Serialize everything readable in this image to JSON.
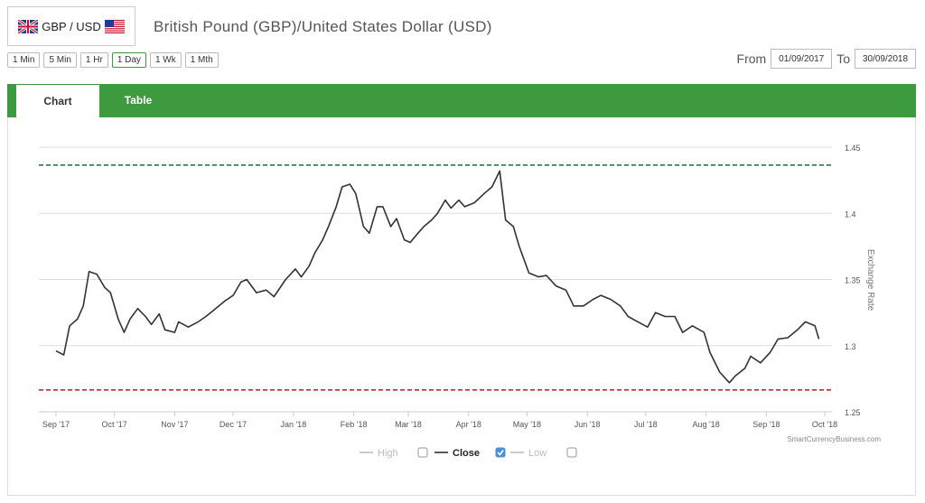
{
  "pair_label": "GBP / USD",
  "title": "British Pound (GBP)/United States Dollar (USD)",
  "intervals": [
    "1 Min",
    "5 Min",
    "1 Hr",
    "1 Day",
    "1 Wk",
    "1 Mth"
  ],
  "active_interval": "1 Day",
  "range": {
    "from_label": "From",
    "from_value": "01/09/2017",
    "to_label": "To",
    "to_value": "30/09/2018"
  },
  "tabs": {
    "chart": "Chart",
    "table": "Table"
  },
  "colors": {
    "accent": "#3e9a3e",
    "line": "#333333",
    "high_line": "#2e7d2e",
    "low_line": "#c62828"
  },
  "watermark": "SmartCurrencyBusiness.com",
  "chart_data": {
    "type": "line",
    "ylabel": "Exchange Rate",
    "ylim": [
      1.25,
      1.45
    ],
    "yticks": [
      "1.25",
      "1.3",
      "1.35",
      "1.4",
      "1.45"
    ],
    "xtick_labels": [
      "Sep '17",
      "Oct '17",
      "Nov '17",
      "Dec '17",
      "Jan '18",
      "Feb '18",
      "Mar '18",
      "Apr '18",
      "May '18",
      "Jun '18",
      "Jul '18",
      "Aug '18",
      "Sep '18",
      "Oct '18"
    ],
    "reference_lines": [
      {
        "value": 1.4365,
        "style": "dashed",
        "color": "#2e7d2e"
      },
      {
        "value": 1.2665,
        "style": "dashed",
        "color": "#c62828"
      }
    ],
    "legend": [
      {
        "name": "High",
        "checked": false
      },
      {
        "name": "Close",
        "checked": true
      },
      {
        "name": "Low",
        "checked": false
      }
    ],
    "series": [
      {
        "name": "Close",
        "x": [
          "2017-09-01",
          "2017-09-05",
          "2017-09-08",
          "2017-09-12",
          "2017-09-15",
          "2017-09-18",
          "2017-09-22",
          "2017-09-26",
          "2017-09-29",
          "2017-10-03",
          "2017-10-06",
          "2017-10-09",
          "2017-10-13",
          "2017-10-17",
          "2017-10-20",
          "2017-10-24",
          "2017-10-27",
          "2017-11-01",
          "2017-11-03",
          "2017-11-08",
          "2017-11-13",
          "2017-11-17",
          "2017-11-22",
          "2017-11-27",
          "2017-12-01",
          "2017-12-05",
          "2017-12-08",
          "2017-12-13",
          "2017-12-18",
          "2017-12-22",
          "2017-12-28",
          "2018-01-02",
          "2018-01-05",
          "2018-01-09",
          "2018-01-12",
          "2018-01-16",
          "2018-01-19",
          "2018-01-23",
          "2018-01-26",
          "2018-01-30",
          "2018-02-02",
          "2018-02-06",
          "2018-02-09",
          "2018-02-13",
          "2018-02-16",
          "2018-02-20",
          "2018-02-23",
          "2018-02-27",
          "2018-03-02",
          "2018-03-06",
          "2018-03-09",
          "2018-03-13",
          "2018-03-16",
          "2018-03-20",
          "2018-03-23",
          "2018-03-27",
          "2018-03-30",
          "2018-04-04",
          "2018-04-09",
          "2018-04-13",
          "2018-04-17",
          "2018-04-20",
          "2018-04-24",
          "2018-04-27",
          "2018-05-02",
          "2018-05-07",
          "2018-05-11",
          "2018-05-16",
          "2018-05-21",
          "2018-05-25",
          "2018-05-30",
          "2018-06-04",
          "2018-06-08",
          "2018-06-13",
          "2018-06-18",
          "2018-06-22",
          "2018-06-27",
          "2018-07-02",
          "2018-07-06",
          "2018-07-11",
          "2018-07-16",
          "2018-07-20",
          "2018-07-25",
          "2018-07-31",
          "2018-08-03",
          "2018-08-08",
          "2018-08-13",
          "2018-08-16",
          "2018-08-21",
          "2018-08-24",
          "2018-08-29",
          "2018-09-03",
          "2018-09-07",
          "2018-09-12",
          "2018-09-17",
          "2018-09-21",
          "2018-09-26",
          "2018-09-28"
        ],
        "values": [
          1.296,
          1.293,
          1.315,
          1.32,
          1.33,
          1.356,
          1.354,
          1.344,
          1.34,
          1.32,
          1.31,
          1.32,
          1.328,
          1.322,
          1.316,
          1.324,
          1.312,
          1.31,
          1.318,
          1.314,
          1.318,
          1.322,
          1.328,
          1.334,
          1.338,
          1.348,
          1.35,
          1.34,
          1.342,
          1.337,
          1.35,
          1.358,
          1.352,
          1.36,
          1.37,
          1.38,
          1.39,
          1.405,
          1.42,
          1.422,
          1.415,
          1.39,
          1.385,
          1.405,
          1.405,
          1.39,
          1.396,
          1.38,
          1.378,
          1.385,
          1.39,
          1.395,
          1.4,
          1.41,
          1.404,
          1.41,
          1.405,
          1.408,
          1.415,
          1.42,
          1.432,
          1.395,
          1.39,
          1.375,
          1.355,
          1.352,
          1.353,
          1.345,
          1.342,
          1.33,
          1.33,
          1.335,
          1.338,
          1.335,
          1.33,
          1.322,
          1.318,
          1.314,
          1.325,
          1.322,
          1.322,
          1.31,
          1.315,
          1.31,
          1.295,
          1.28,
          1.272,
          1.277,
          1.283,
          1.292,
          1.287,
          1.295,
          1.305,
          1.306,
          1.312,
          1.318,
          1.315,
          1.305
        ]
      }
    ]
  }
}
